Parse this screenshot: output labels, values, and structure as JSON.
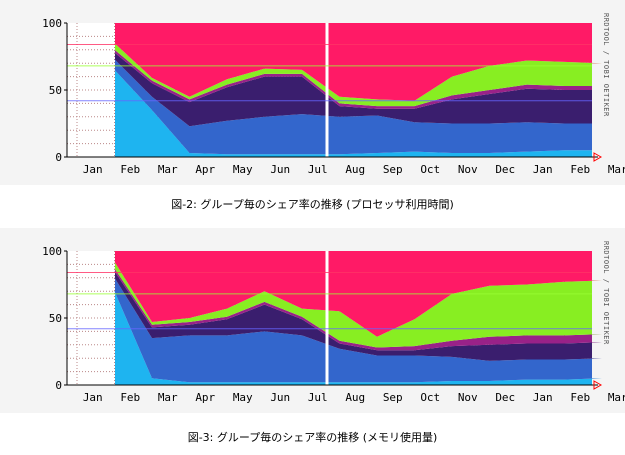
{
  "chart_data": [
    {
      "type": "area",
      "stacked": true,
      "ylim": [
        0,
        100
      ],
      "yticks": [
        "0",
        "50",
        "100"
      ],
      "categories": [
        "Jan",
        "Feb",
        "Mar",
        "Apr",
        "May",
        "Jun",
        "Jul",
        "Aug",
        "Sep",
        "Oct",
        "Nov",
        "Dec",
        "Jan",
        "Feb",
        "Mar"
      ],
      "side_label": "RRDTOOL / TOBI OETIKER",
      "caption": "図-2: グループ毎のシェア率の推移 (プロセッサ利用時間)",
      "series": [
        {
          "color": "#1eb4f0",
          "values": [
            null,
            65,
            35,
            3,
            2,
            2,
            2,
            2,
            3,
            4,
            3,
            3,
            4,
            5,
            5
          ]
        },
        {
          "color": "#3366cc",
          "values": [
            null,
            8,
            10,
            20,
            25,
            28,
            30,
            28,
            28,
            22,
            22,
            22,
            22,
            20,
            20
          ]
        },
        {
          "color": "#3a1e6e",
          "values": [
            null,
            5,
            10,
            18,
            25,
            30,
            28,
            8,
            5,
            10,
            18,
            22,
            25,
            25,
            25
          ]
        },
        {
          "color": "#992288",
          "values": [
            null,
            2,
            2,
            2,
            2,
            2,
            2,
            2,
            2,
            2,
            3,
            3,
            3,
            3,
            3
          ]
        },
        {
          "color": "#88ee22",
          "values": [
            null,
            5,
            2,
            2,
            4,
            4,
            3,
            5,
            5,
            4,
            14,
            18,
            18,
            18,
            17
          ]
        },
        {
          "color": "#ff1a66",
          "values": [
            null,
            15,
            41,
            55,
            42,
            34,
            35,
            55,
            57,
            58,
            40,
            32,
            28,
            29,
            30
          ]
        }
      ]
    },
    {
      "type": "area",
      "stacked": true,
      "ylim": [
        0,
        100
      ],
      "yticks": [
        "0",
        "50",
        "100"
      ],
      "categories": [
        "Jan",
        "Feb",
        "Mar",
        "Apr",
        "May",
        "Jun",
        "Jul",
        "Aug",
        "Sep",
        "Oct",
        "Nov",
        "Dec",
        "Jan",
        "Feb",
        "Mar"
      ],
      "side_label": "RRDTOOL / TOBI OETIKER",
      "caption": "図-3: グループ毎のシェア率の推移 (メモリ使用量)",
      "series": [
        {
          "color": "#1eb4f0",
          "values": [
            null,
            70,
            5,
            2,
            2,
            2,
            2,
            2,
            2,
            2,
            3,
            3,
            4,
            4,
            5
          ]
        },
        {
          "color": "#3366cc",
          "values": [
            null,
            10,
            30,
            35,
            35,
            38,
            35,
            25,
            20,
            20,
            18,
            15,
            15,
            15,
            15
          ]
        },
        {
          "color": "#3a1e6e",
          "values": [
            null,
            5,
            8,
            8,
            12,
            20,
            12,
            4,
            4,
            4,
            8,
            12,
            12,
            12,
            12
          ]
        },
        {
          "color": "#992288",
          "values": [
            null,
            2,
            2,
            2,
            2,
            2,
            2,
            2,
            2,
            3,
            4,
            6,
            6,
            6,
            6
          ]
        },
        {
          "color": "#88ee22",
          "values": [
            null,
            5,
            2,
            3,
            6,
            8,
            6,
            22,
            8,
            20,
            35,
            38,
            38,
            40,
            40
          ]
        },
        {
          "color": "#ff1a66",
          "values": [
            null,
            8,
            53,
            50,
            43,
            30,
            43,
            45,
            64,
            51,
            32,
            26,
            25,
            23,
            22
          ]
        }
      ]
    }
  ]
}
